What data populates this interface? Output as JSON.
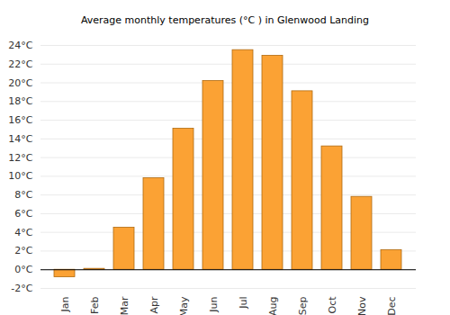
{
  "chart_data": {
    "type": "bar",
    "title": "Average monthly temperatures (°C ) in Glenwood Landing",
    "categories": [
      "Jan",
      "Feb",
      "Mar",
      "Apr",
      "May",
      "Jun",
      "Jul",
      "Aug",
      "Sep",
      "Oct",
      "Nov",
      "Dec"
    ],
    "values": [
      -0.8,
      0.1,
      4.5,
      9.8,
      15.1,
      20.2,
      23.5,
      22.9,
      19.1,
      13.2,
      7.8,
      2.1
    ],
    "color": "#fba234",
    "ylim": [
      -2,
      24
    ],
    "yticks": [
      {
        "value": -2,
        "label": "-2°C"
      },
      {
        "value": 0,
        "label": "0°C"
      },
      {
        "value": 2,
        "label": "2°C"
      },
      {
        "value": 4,
        "label": "4°C"
      },
      {
        "value": 6,
        "label": "6°C"
      },
      {
        "value": 8,
        "label": "8°C"
      },
      {
        "value": 10,
        "label": "10°C"
      },
      {
        "value": 12,
        "label": "12°C"
      },
      {
        "value": 14,
        "label": "14°C"
      },
      {
        "value": 16,
        "label": "16°C"
      },
      {
        "value": 18,
        "label": "18°C"
      },
      {
        "value": 20,
        "label": "20°C"
      },
      {
        "value": 22,
        "label": "22°C"
      },
      {
        "value": 24,
        "label": "24°C"
      }
    ],
    "grid": true
  }
}
